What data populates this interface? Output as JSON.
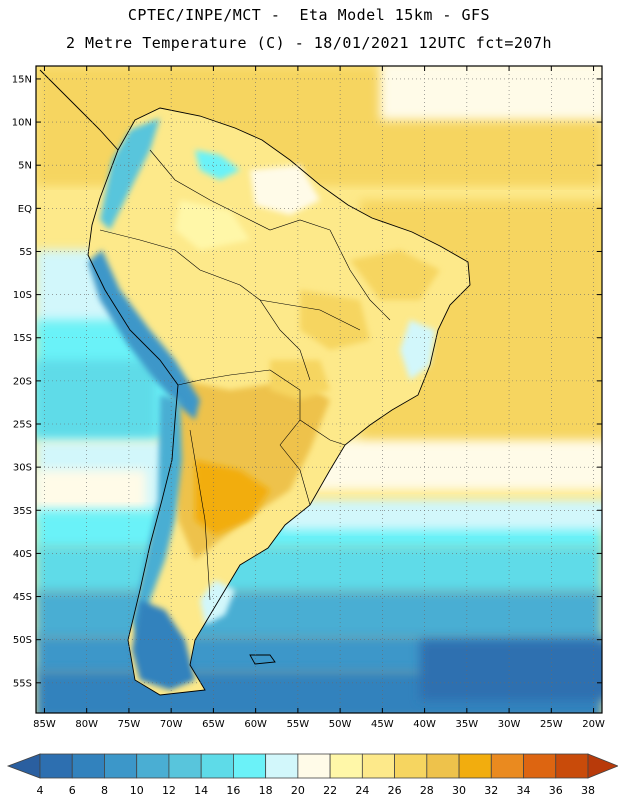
{
  "header": {
    "line1": "CPTEC/INPE/MCT -  Eta Model 15km - GFS",
    "line2": "2 Metre Temperature (C) - 18/01/2021 12UTC fct=207h"
  },
  "map": {
    "lon_range": [
      -86,
      -19
    ],
    "lat_range": [
      -58.5,
      16.5
    ],
    "lat_ticks": [
      {
        "value": 15,
        "label": "15N"
      },
      {
        "value": 10,
        "label": "10N"
      },
      {
        "value": 5,
        "label": "5N"
      },
      {
        "value": 0,
        "label": "EQ"
      },
      {
        "value": -5,
        "label": "5S"
      },
      {
        "value": -10,
        "label": "10S"
      },
      {
        "value": -15,
        "label": "15S"
      },
      {
        "value": -20,
        "label": "20S"
      },
      {
        "value": -25,
        "label": "25S"
      },
      {
        "value": -30,
        "label": "30S"
      },
      {
        "value": -35,
        "label": "35S"
      },
      {
        "value": -40,
        "label": "40S"
      },
      {
        "value": -45,
        "label": "45S"
      },
      {
        "value": -50,
        "label": "50S"
      },
      {
        "value": -55,
        "label": "55S"
      }
    ],
    "lon_ticks": [
      {
        "value": -85,
        "label": "85W"
      },
      {
        "value": -80,
        "label": "80W"
      },
      {
        "value": -75,
        "label": "75W"
      },
      {
        "value": -70,
        "label": "70W"
      },
      {
        "value": -65,
        "label": "65W"
      },
      {
        "value": -60,
        "label": "60W"
      },
      {
        "value": -55,
        "label": "55W"
      },
      {
        "value": -50,
        "label": "50W"
      },
      {
        "value": -45,
        "label": "45W"
      },
      {
        "value": -40,
        "label": "40W"
      },
      {
        "value": -35,
        "label": "35W"
      },
      {
        "value": -30,
        "label": "30W"
      },
      {
        "value": -25,
        "label": "25W"
      },
      {
        "value": -20,
        "label": "20W"
      }
    ],
    "grid": "dotted"
  },
  "colorbar": {
    "labels": [
      "4",
      "6",
      "8",
      "10",
      "12",
      "14",
      "16",
      "18",
      "20",
      "22",
      "24",
      "26",
      "28",
      "30",
      "32",
      "34",
      "36",
      "38"
    ],
    "colors": [
      "#2d6fb0",
      "#3282bd",
      "#3c97c9",
      "#4aaed3",
      "#58c5dc",
      "#5edbe8",
      "#6bf2f8",
      "#d2f7fb",
      "#fffbe8",
      "#fff7a8",
      "#fde98a",
      "#f6d560",
      "#eec24b",
      "#f2ad0e",
      "#ea8a1f",
      "#dd6511",
      "#c94b0a"
    ],
    "under_color": "#2a5fa0",
    "over_color": "#b83a0a"
  }
}
